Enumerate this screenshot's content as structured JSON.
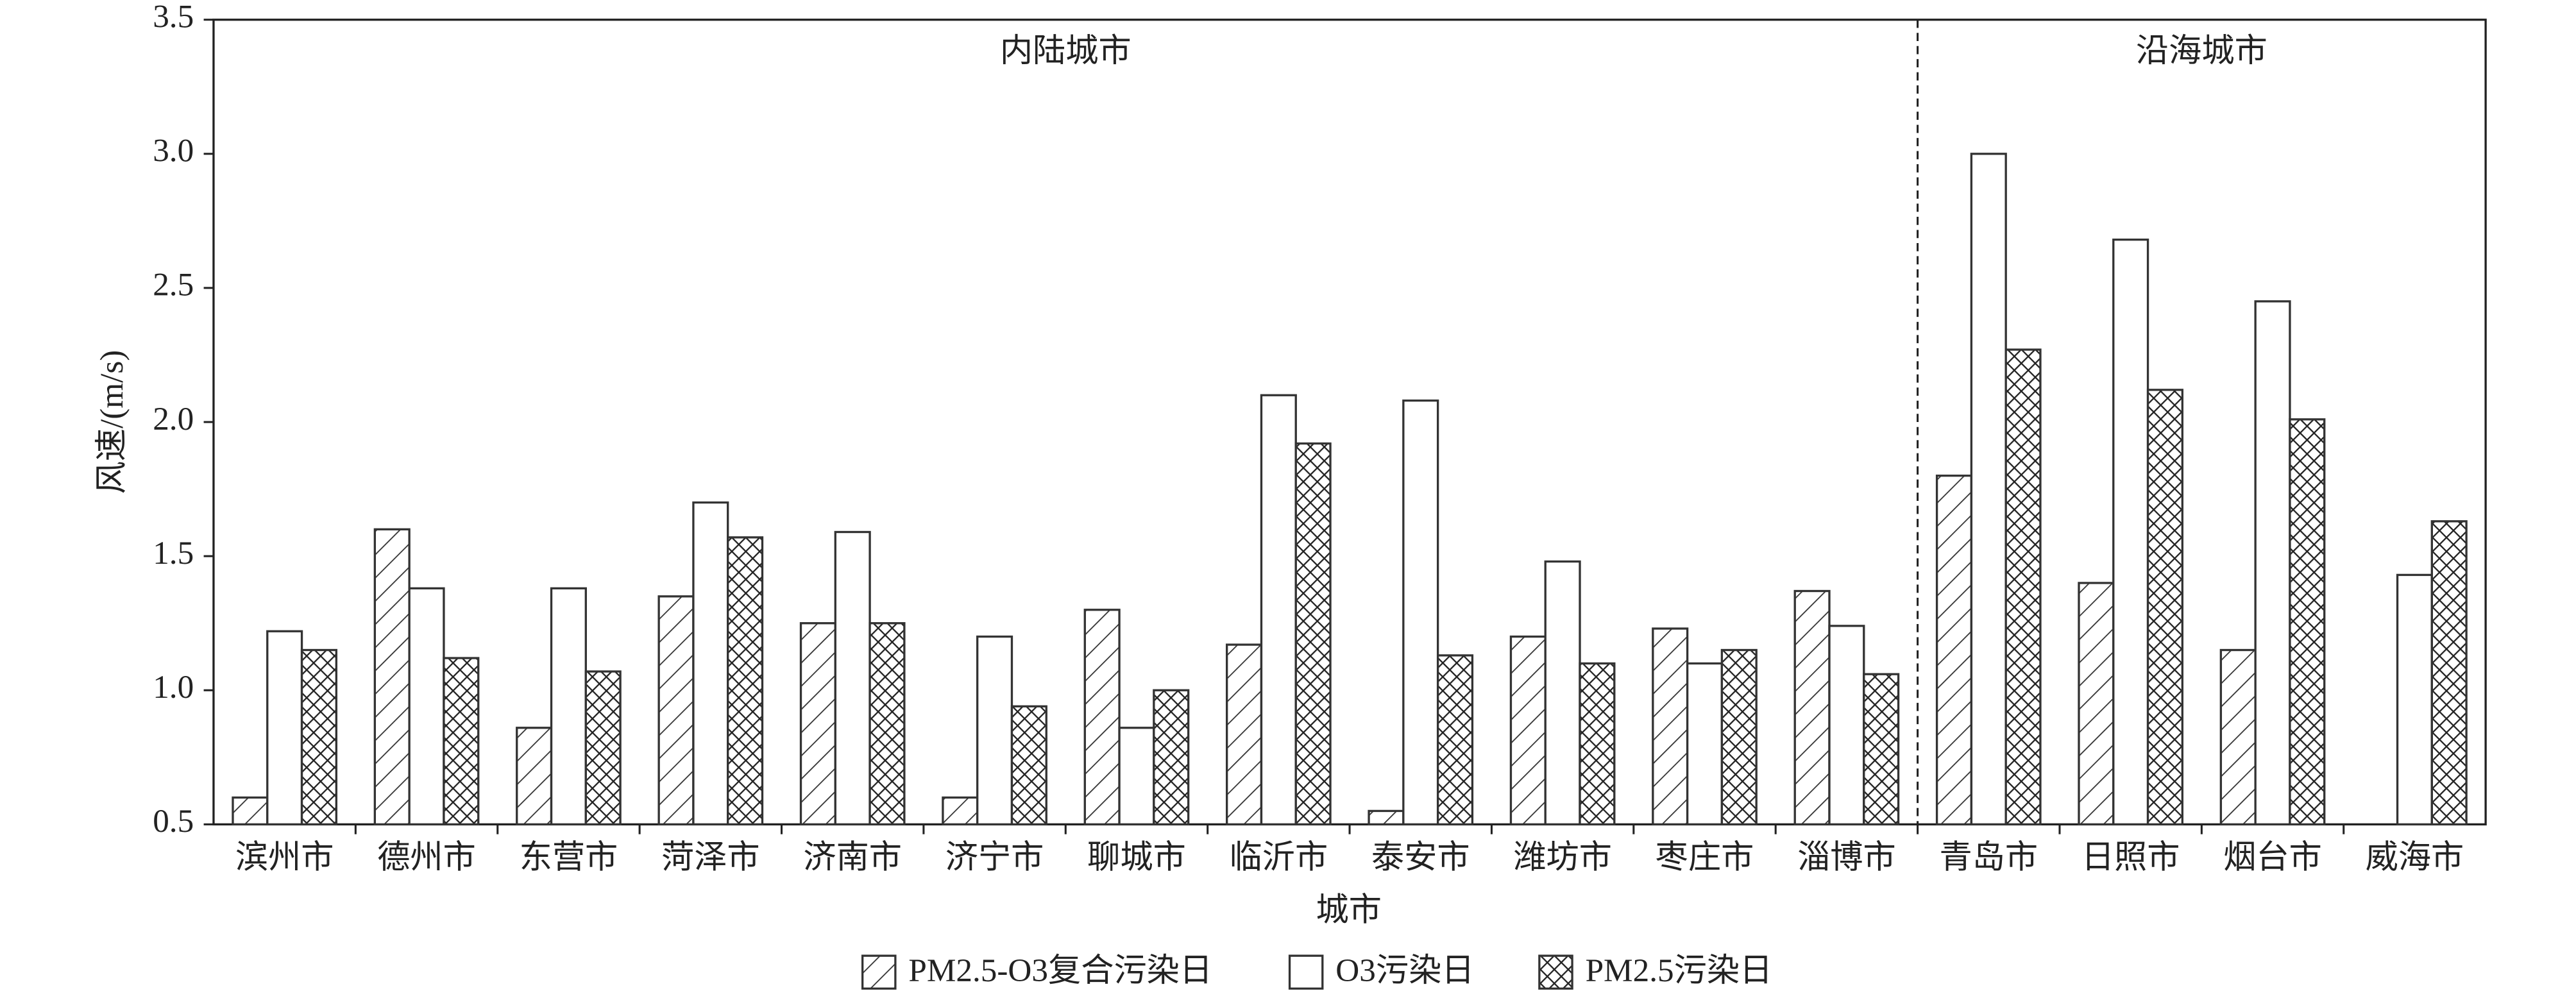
{
  "chart_data": {
    "type": "bar",
    "y_label": "风速/(m/s)",
    "x_label": "城市",
    "categories": [
      "滨州市",
      "德州市",
      "东营市",
      "菏泽市",
      "济南市",
      "济宁市",
      "聊城市",
      "临沂市",
      "泰安市",
      "潍坊市",
      "枣庄市",
      "淄博市",
      "青岛市",
      "日照市",
      "烟台市",
      "威海市"
    ],
    "series": [
      {
        "name": "PM2.5-O3复合污染日",
        "pattern": "hatch",
        "color": "#333333",
        "values": [
          0.6,
          1.6,
          0.86,
          1.35,
          1.25,
          0.6,
          1.3,
          1.17,
          0.55,
          1.2,
          1.23,
          1.37,
          1.8,
          1.4,
          1.15,
          null
        ]
      },
      {
        "name": "O3污染日",
        "pattern": "none",
        "color": "#333333",
        "values": [
          1.22,
          1.38,
          1.38,
          1.7,
          1.59,
          1.2,
          0.86,
          2.1,
          2.08,
          1.48,
          1.1,
          1.24,
          3.0,
          2.68,
          2.45,
          1.43
        ]
      },
      {
        "name": "PM2.5污染日",
        "pattern": "crosshatch",
        "color": "#333333",
        "values": [
          1.15,
          1.12,
          1.07,
          1.57,
          1.25,
          0.94,
          1.0,
          1.92,
          1.13,
          1.1,
          1.15,
          1.06,
          2.27,
          2.12,
          2.01,
          1.63
        ]
      }
    ],
    "regions": [
      {
        "label": "内陆城市",
        "from": 0,
        "to": 11
      },
      {
        "label": "沿海城市",
        "from": 12,
        "to": 15
      }
    ],
    "ylim": [
      0.5,
      3.5
    ],
    "yticks": [
      0.5,
      {
        "value": 1,
        "label": "1.0"
      },
      1.5,
      {
        "value": 2,
        "label": "2.0"
      },
      2.5,
      {
        "value": 3,
        "label": "3.0"
      },
      3.5
    ],
    "grid": false,
    "legend": "bottom"
  }
}
